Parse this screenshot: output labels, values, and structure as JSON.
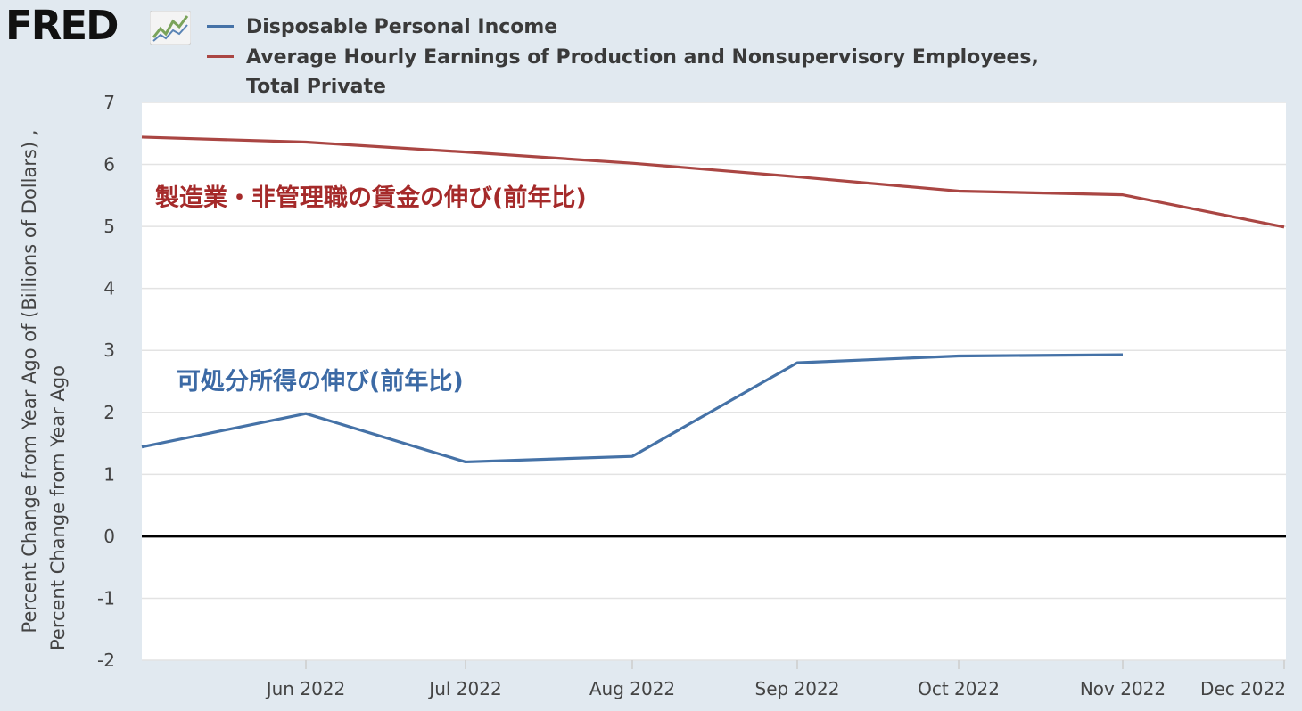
{
  "brand": {
    "logo_text": "FRED"
  },
  "chart_data": {
    "type": "line",
    "x": [
      "2022-05",
      "2022-06",
      "2022-07",
      "2022-08",
      "2022-09",
      "2022-10",
      "2022-11",
      "2022-12"
    ],
    "x_tick_labels": [
      "Jun 2022",
      "Jul 2022",
      "Aug 2022",
      "Sep 2022",
      "Oct 2022",
      "Nov 2022",
      "Dec 2022"
    ],
    "series": [
      {
        "name": "Disposable Personal Income",
        "color": "#4572a7",
        "values": [
          1.44,
          1.98,
          1.2,
          1.29,
          2.8,
          2.91,
          2.93,
          null
        ]
      },
      {
        "name": "Average Hourly Earnings of Production and Nonsupervisory Employees, Total Private",
        "color": "#aa4643",
        "values": [
          6.44,
          6.36,
          6.2,
          6.02,
          5.8,
          5.57,
          5.51,
          4.99
        ]
      }
    ],
    "yticks": [
      -2,
      -1,
      0,
      1,
      2,
      3,
      4,
      5,
      6,
      7
    ],
    "ylim": [
      -2,
      7
    ],
    "ylabel_line1": "Percent Change from Year Ago of (Billions of Dollars) ,",
    "ylabel_line2": "Percent Change from Year Ago",
    "annotations": [
      {
        "text": "製造業・非管理職の賃金の伸び(前年比)",
        "color": "#a52a2a"
      },
      {
        "text": "可処分所得の伸び(前年比)",
        "color": "#3c6aa5"
      }
    ],
    "grid": true,
    "legend_position": "top"
  }
}
